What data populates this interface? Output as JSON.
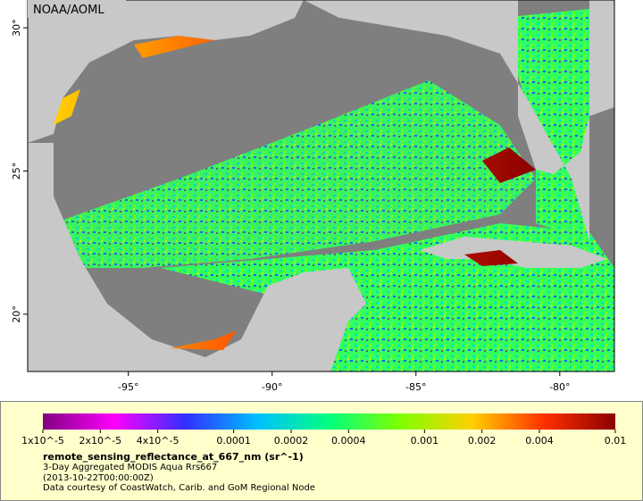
{
  "map": {
    "credit": "NOAA/AOML",
    "lon_range": [
      -98.5,
      -78.1
    ],
    "lat_range": [
      18.0,
      30.97
    ],
    "lon_ticks": [
      {
        "value": -95,
        "label": "-95°"
      },
      {
        "value": -90,
        "label": "-90°"
      },
      {
        "value": -85,
        "label": "-85°"
      },
      {
        "value": -80,
        "label": "-80°"
      }
    ],
    "lat_ticks": [
      {
        "value": 30,
        "label": "30°"
      },
      {
        "value": 25,
        "label": "25°"
      },
      {
        "value": 20,
        "label": "20°"
      }
    ]
  },
  "colorbar": {
    "scale": "log",
    "range": [
      1e-05,
      0.01
    ],
    "colors": [
      "#800080",
      "#ff00ff",
      "#3030ff",
      "#00c0ff",
      "#00ff80",
      "#80ff00",
      "#ffd000",
      "#ff3000",
      "#8b0000"
    ],
    "ticks": [
      {
        "value": 1e-05,
        "label": "1x10^-5"
      },
      {
        "value": 2e-05,
        "label": "2x10^-5"
      },
      {
        "value": 4e-05,
        "label": "4x10^-5"
      },
      0.0001,
      0.0002,
      0.0004,
      0.001,
      0.002,
      0.004,
      0.01
    ]
  },
  "legend": {
    "variable": "remote_sensing_reflectance_at_667_nm (sr^-1)",
    "product": "3-Day Aggregated MODIS Aqua Rrs667",
    "time": "(2013-10-22T00:00:00Z)",
    "source": "Data courtesy of CoastWatch, Carib. and GoM Regional Node"
  }
}
